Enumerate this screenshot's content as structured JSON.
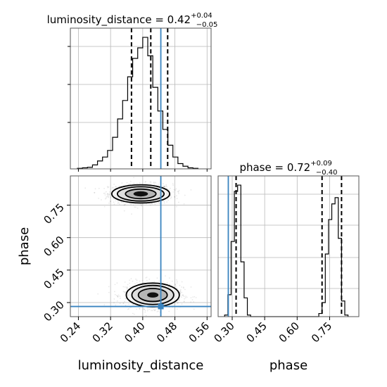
{
  "chart_data": [
    {
      "type": "histogram",
      "panel": "luminosity_distance-1d",
      "title": {
        "prefix": "luminosity_distance = 0.42",
        "sup": "+0.04",
        "sub": "−0.05"
      },
      "xlim": [
        0.22,
        0.57
      ],
      "bin_edges": [
        0.2375,
        0.25,
        0.2625,
        0.275,
        0.2875,
        0.3,
        0.3125,
        0.325,
        0.3375,
        0.35,
        0.3625,
        0.375,
        0.3875,
        0.4,
        0.4125,
        0.425,
        0.4375,
        0.45,
        0.4625,
        0.475,
        0.4875,
        0.5,
        0.5125,
        0.525,
        0.5375
      ],
      "counts": [
        0.004,
        0.008,
        0.012,
        0.03,
        0.06,
        0.09,
        0.14,
        0.24,
        0.38,
        0.52,
        0.7,
        0.84,
        0.92,
        1.0,
        0.86,
        0.62,
        0.44,
        0.3,
        0.18,
        0.09,
        0.04,
        0.02,
        0.008,
        0.004
      ],
      "quantile_lines": [
        0.372,
        0.42,
        0.462
      ],
      "truth": 0.445,
      "grid": true
    },
    {
      "type": "scatter-contour",
      "panel": "phase-vs-luminosity_distance",
      "xlabel": "luminosity_distance",
      "ylabel": "phase",
      "xlim": [
        0.22,
        0.57
      ],
      "ylim": [
        0.235,
        0.885
      ],
      "xticks": [
        "0.24",
        "0.32",
        "0.40",
        "0.48",
        "0.56"
      ],
      "yticks": [
        "0.30",
        "0.45",
        "0.60",
        "0.75"
      ],
      "modes": [
        {
          "center": [
            0.395,
            0.802
          ],
          "contour_radii": [
            [
              0.018,
              0.012
            ],
            [
              0.038,
              0.022
            ],
            [
              0.058,
              0.033
            ],
            [
              0.072,
              0.042
            ]
          ]
        },
        {
          "center": [
            0.425,
            0.335
          ],
          "contour_radii": [
            [
              0.014,
              0.012
            ],
            [
              0.036,
              0.03
            ],
            [
              0.052,
              0.044
            ],
            [
              0.066,
              0.055
            ]
          ]
        }
      ],
      "truth": [
        0.445,
        0.282
      ],
      "grid": true
    },
    {
      "type": "histogram",
      "panel": "phase-1d",
      "title": {
        "prefix": "phase = 0.72",
        "sup": "+0.09",
        "sub": "−0.40"
      },
      "xlabel": "phase",
      "xlim": [
        0.235,
        0.885
      ],
      "xticks": [
        "0.30",
        "0.45",
        "0.60",
        "0.75"
      ],
      "bin_edges": [
        0.265,
        0.28,
        0.295,
        0.31,
        0.325,
        0.34,
        0.355,
        0.37,
        0.385,
        0.4,
        0.415,
        0.43,
        0.445,
        0.46,
        0.475,
        0.49,
        0.505,
        0.52,
        0.535,
        0.55,
        0.565,
        0.58,
        0.595,
        0.61,
        0.625,
        0.64,
        0.655,
        0.67,
        0.685,
        0.7,
        0.715,
        0.73,
        0.745,
        0.76,
        0.775,
        0.79,
        0.805,
        0.82,
        0.835
      ],
      "counts": [
        0.01,
        0.14,
        0.48,
        0.8,
        0.84,
        0.35,
        0.12,
        0.01,
        0,
        0,
        0,
        0,
        0,
        0,
        0,
        0,
        0,
        0,
        0,
        0,
        0,
        0,
        0,
        0,
        0,
        0,
        0,
        0,
        0,
        0.02,
        0.09,
        0.4,
        0.62,
        0.72,
        0.76,
        0.5,
        0.1,
        0.01
      ],
      "quantile_lines": [
        0.318,
        0.715,
        0.805
      ],
      "truth": 0.282,
      "grid": true
    }
  ]
}
